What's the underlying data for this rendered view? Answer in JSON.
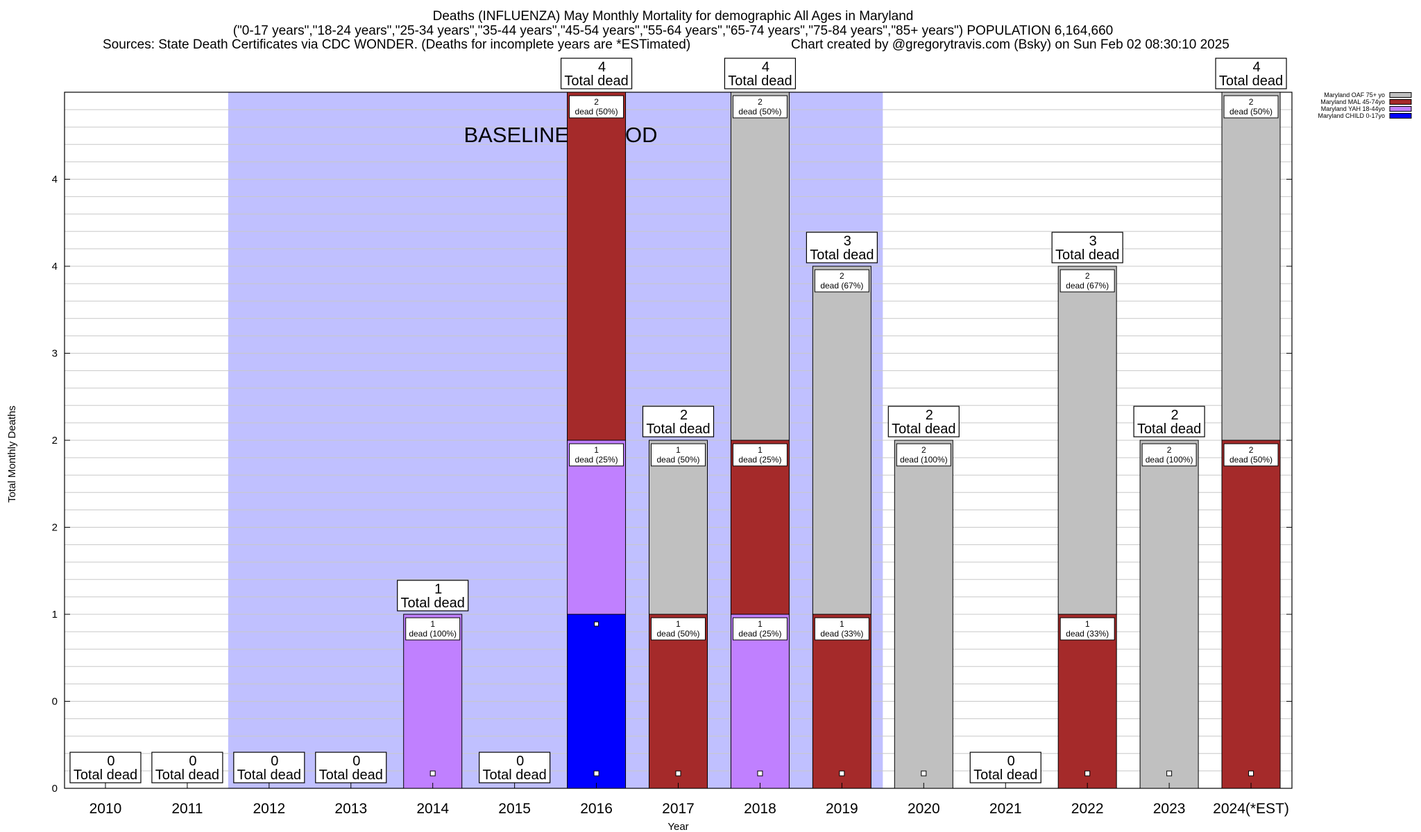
{
  "chart_data": {
    "type": "bar",
    "stacked": true,
    "title": "Deaths (INFLUENZA) May Monthly Mortality for demographic All Ages in Maryland",
    "subtitle": "(\"0-17 years\",\"18-24 years\",\"25-34 years\",\"35-44 years\",\"45-54 years\",\"55-64 years\",\"65-74 years\",\"75-84 years\",\"85+ years\") POPULATION 6,164,660",
    "sources": "Sources: State Death Certificates via CDC WONDER. (Deaths for incomplete years are *ESTimated)",
    "credit": "Chart created by @gregorytravis.com (Bsky) on Sun Feb 02 08:30:10 2025",
    "xlabel": "Year",
    "ylabel": "Total Monthly Deaths",
    "ylim": [
      0,
      4
    ],
    "ytick_labels": [
      "0",
      "0",
      "1",
      "2",
      "2",
      "3",
      "4",
      "4"
    ],
    "baseline_label": "BASELINE PERIOD",
    "baseline_range": [
      "2012",
      "2019"
    ],
    "total_label": "Total dead",
    "dead_label": "dead",
    "categories": [
      "2010",
      "2011",
      "2012",
      "2013",
      "2014",
      "2015",
      "2016",
      "2017",
      "2018",
      "2019",
      "2020",
      "2021",
      "2022",
      "2023",
      "2024(*EST)"
    ],
    "series": [
      {
        "name": "Maryland CHILD 0-17yo",
        "color": "#0000ff",
        "values": [
          0,
          0,
          0,
          0,
          0,
          0,
          1,
          0,
          0,
          0,
          0,
          0,
          0,
          0,
          0
        ]
      },
      {
        "name": "Maryland YAH 18-44yo",
        "color": "#c080ff",
        "values": [
          0,
          0,
          0,
          0,
          1,
          0,
          1,
          0,
          1,
          0,
          0,
          0,
          0,
          0,
          0
        ]
      },
      {
        "name": "Maryland MAL 45-74yo",
        "color": "#a52a2a",
        "values": [
          0,
          0,
          0,
          0,
          0,
          0,
          2,
          1,
          1,
          1,
          0,
          0,
          1,
          0,
          2
        ]
      },
      {
        "name": "Maryland OAF 75+ yo",
        "color": "#c0c0c0",
        "values": [
          0,
          0,
          0,
          0,
          0,
          0,
          0,
          1,
          2,
          2,
          2,
          0,
          2,
          2,
          2
        ]
      }
    ],
    "segment_labels": [
      [],
      [],
      [],
      [],
      [
        {
          "series": 1,
          "count": "1",
          "text": "dead (100%)"
        }
      ],
      [],
      [
        {
          "series": 0,
          "count": "",
          "text": ""
        },
        {
          "series": 1,
          "count": "1",
          "text": "dead (25%)"
        },
        {
          "series": 2,
          "count": "2",
          "text": "dead (50%)"
        }
      ],
      [
        {
          "series": 2,
          "count": "1",
          "text": "dead (50%)"
        },
        {
          "series": 3,
          "count": "1",
          "text": "dead (50%)"
        }
      ],
      [
        {
          "series": 1,
          "count": "1",
          "text": "dead (25%)"
        },
        {
          "series": 2,
          "count": "1",
          "text": "dead (25%)"
        },
        {
          "series": 3,
          "count": "2",
          "text": "dead (50%)"
        }
      ],
      [
        {
          "series": 2,
          "count": "1",
          "text": "dead (33%)"
        },
        {
          "series": 3,
          "count": "2",
          "text": "dead (67%)"
        }
      ],
      [
        {
          "series": 3,
          "count": "2",
          "text": "dead (100%)"
        }
      ],
      [],
      [
        {
          "series": 2,
          "count": "1",
          "text": "dead (33%)"
        },
        {
          "series": 3,
          "count": "2",
          "text": "dead (67%)"
        }
      ],
      [
        {
          "series": 3,
          "count": "2",
          "text": "dead (100%)"
        }
      ],
      [
        {
          "series": 2,
          "count": "2",
          "text": "dead (50%)"
        },
        {
          "series": 3,
          "count": "2",
          "text": "dead (50%)"
        }
      ]
    ],
    "totals": [
      0,
      0,
      0,
      0,
      1,
      0,
      4,
      2,
      4,
      3,
      2,
      0,
      3,
      2,
      4
    ],
    "legend_position": "top-right",
    "legend_order": [
      "Maryland OAF 75+ yo",
      "Maryland MAL 45-74yo",
      "Maryland YAH 18-44yo",
      "Maryland CHILD 0-17yo"
    ],
    "colors": {
      "baseline_shade": "#c0c0ff",
      "grid": "#c8c8c8"
    }
  }
}
